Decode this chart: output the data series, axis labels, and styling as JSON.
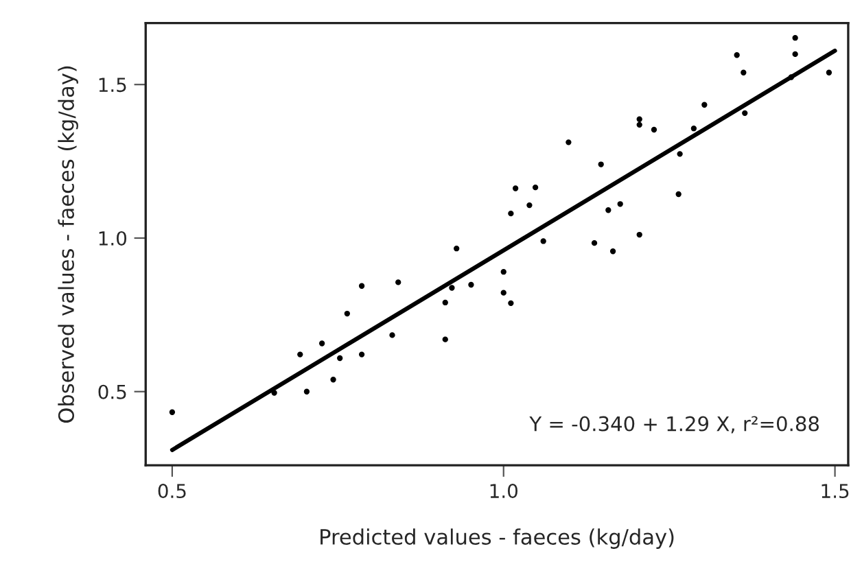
{
  "chart_data": {
    "type": "scatter",
    "xlabel": "Predicted values - faeces (kg/day)",
    "ylabel": "Observed values - faeces (kg/day)",
    "xlim": [
      0.46,
      1.52
    ],
    "ylim": [
      0.26,
      1.7
    ],
    "xticks": [
      0.5,
      {
        "value": 1.0,
        "label": "1.0"
      },
      1.5
    ],
    "yticks": [
      0.5,
      {
        "value": 1.0,
        "label": "1.0"
      },
      1.5
    ],
    "grid": false,
    "legend": false,
    "marker": "circle",
    "annotations": [
      "Y = -0.340 + 1.29 X, r²=0.88"
    ],
    "series": [
      {
        "color": "#000000",
        "x": [
          0.5,
          0.929,
          0.786,
          0.841,
          0.922,
          0.951,
          0.764,
          0.912,
          0.726,
          0.693,
          0.753,
          0.786,
          0.832,
          0.912,
          0.743,
          0.703,
          0.654,
          1.44,
          1.44,
          1.352,
          1.362,
          1.434,
          1.491,
          1.364,
          1.303,
          1.287,
          1.205,
          1.205,
          1.227,
          1.098,
          1.266,
          1.147,
          1.018,
          1.048,
          1.039,
          1.011,
          1.264,
          1.158,
          1.176,
          1.06,
          1.137,
          1.165,
          1.205,
          1.0,
          1.0,
          1.011
        ],
        "values": [
          0.433,
          0.966,
          0.844,
          0.856,
          0.838,
          0.848,
          0.754,
          0.79,
          0.657,
          0.621,
          0.609,
          0.621,
          0.684,
          0.67,
          0.539,
          0.5,
          0.496,
          1.652,
          1.599,
          1.596,
          1.539,
          1.524,
          1.539,
          1.407,
          1.434,
          1.357,
          1.387,
          1.369,
          1.353,
          1.312,
          1.274,
          1.24,
          1.162,
          1.165,
          1.107,
          1.08,
          1.143,
          1.091,
          1.111,
          0.99,
          0.984,
          0.957,
          1.011,
          0.89,
          0.822,
          0.788
        ]
      },
      {
        "type": "line",
        "color": "#000000",
        "x": [
          0.5,
          1.5
        ],
        "values": [
          0.31,
          1.61
        ],
        "line_style": "solid",
        "marker": "none"
      }
    ]
  }
}
